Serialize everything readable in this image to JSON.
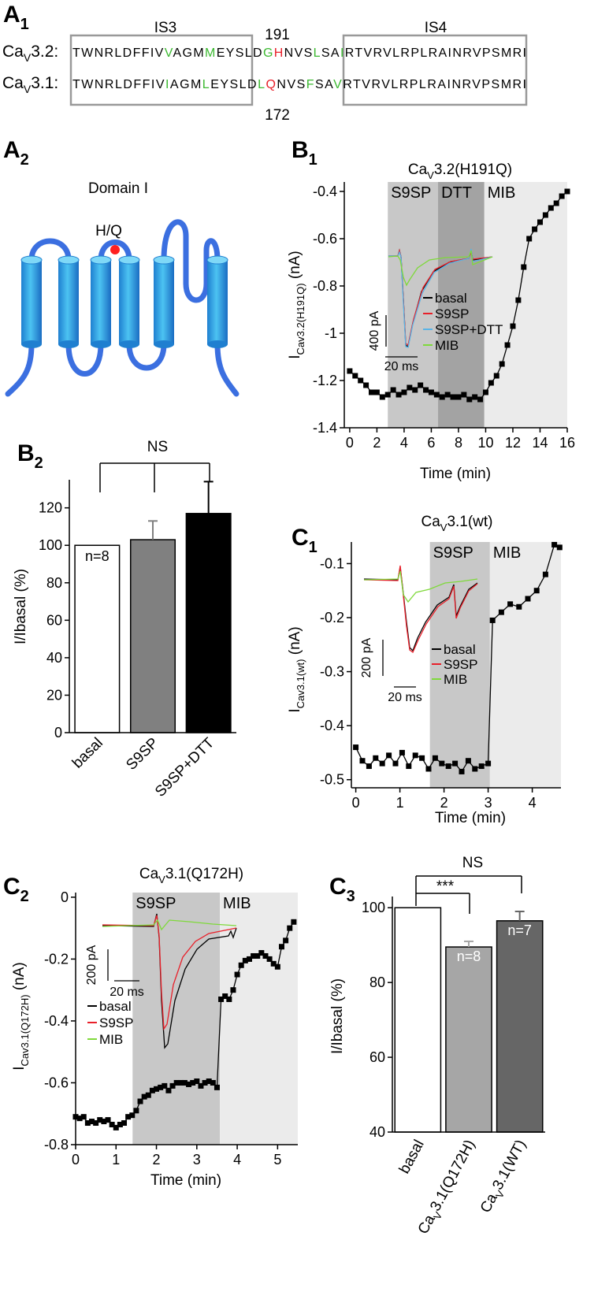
{
  "panel_labels": [
    [
      "A",
      "1"
    ],
    [
      "A",
      "2"
    ],
    [
      "B",
      "1"
    ],
    [
      "B",
      "2"
    ],
    [
      "C",
      "1"
    ],
    [
      "C",
      "2"
    ],
    [
      "C",
      "3"
    ]
  ],
  "sequence": {
    "domains": [
      "IS3",
      "IS4"
    ],
    "positions": [
      "191",
      "172"
    ],
    "rows": [
      {
        "label": [
          "Ca",
          "V",
          "3.2:"
        ],
        "segments": [
          {
            "text": "TWNRLDFFIV",
            "color": "#000000"
          },
          {
            "text": "V",
            "color": "#3cb931"
          },
          {
            "text": "AGM",
            "color": "#000000"
          },
          {
            "text": "M",
            "color": "#3cb931"
          },
          {
            "text": "EYSLD",
            "color": "#000000"
          },
          {
            "text": "G",
            "color": "#3cb931"
          },
          {
            "text": "H",
            "color": "#e8202a"
          },
          {
            "text": "NVS",
            "color": "#000000"
          },
          {
            "text": "L",
            "color": "#3cb931"
          },
          {
            "text": "SA",
            "color": "#000000"
          },
          {
            "text": "I",
            "color": "#3cb931"
          },
          {
            "text": "RTVRVLRPLRAINRVPSMRI",
            "color": "#000000"
          }
        ]
      },
      {
        "label": [
          "Ca",
          "V",
          "3.1:"
        ],
        "segments": [
          {
            "text": "TWNRLDFFIV",
            "color": "#000000"
          },
          {
            "text": "I",
            "color": "#3cb931"
          },
          {
            "text": "AGM",
            "color": "#000000"
          },
          {
            "text": "L",
            "color": "#3cb931"
          },
          {
            "text": "EYSLD",
            "color": "#000000"
          },
          {
            "text": "L",
            "color": "#3cb931"
          },
          {
            "text": "Q",
            "color": "#e8202a"
          },
          {
            "text": "NVS",
            "color": "#000000"
          },
          {
            "text": "F",
            "color": "#3cb931"
          },
          {
            "text": "SA",
            "color": "#000000"
          },
          {
            "text": "V",
            "color": "#3cb931"
          },
          {
            "text": "RTVRVLRPLRAINRVPSMRI",
            "color": "#000000"
          }
        ]
      }
    ]
  },
  "diagram": {
    "title": "Domain I",
    "site": "H/Q"
  },
  "chart_data": [
    {
      "type": "line",
      "title": [
        "Ca",
        "V",
        "3.2(H191Q)"
      ],
      "xlabel": "Time (min)",
      "ylabel": [
        "I",
        "Cav3.2(H191Q)",
        " (nA)"
      ],
      "x": [
        0,
        0.4,
        0.8,
        1.2,
        1.6,
        2,
        2.4,
        2.8,
        3.2,
        3.6,
        4,
        4.4,
        4.8,
        5.2,
        5.6,
        6,
        6.4,
        6.8,
        7.2,
        7.6,
        8,
        8.4,
        8.8,
        9.2,
        9.6,
        10,
        10.4,
        10.8,
        11.2,
        11.6,
        12,
        12.4,
        12.8,
        13.2,
        13.6,
        14,
        14.4,
        14.8,
        15.2,
        15.6,
        16
      ],
      "values": [
        -1.16,
        -1.18,
        -1.2,
        -1.22,
        -1.25,
        -1.25,
        -1.27,
        -1.26,
        -1.24,
        -1.26,
        -1.25,
        -1.23,
        -1.24,
        -1.22,
        -1.24,
        -1.25,
        -1.26,
        -1.27,
        -1.26,
        -1.27,
        -1.27,
        -1.26,
        -1.28,
        -1.27,
        -1.28,
        -1.25,
        -1.21,
        -1.18,
        -1.13,
        -1.05,
        -0.97,
        -0.86,
        -0.72,
        -0.6,
        -0.56,
        -0.53,
        -0.5,
        -0.47,
        -0.45,
        -0.42,
        -0.4
      ],
      "color": "#000000",
      "marker": "square",
      "xlim": [
        -0.4,
        16
      ],
      "xticks": [
        0,
        2,
        4,
        6,
        8,
        10,
        12,
        14,
        16
      ],
      "ylim": [
        -1.4,
        -0.36
      ],
      "yticks": [
        -1.4,
        -1.2,
        -1,
        -0.8,
        -0.6,
        -0.4
      ],
      "regions": [
        {
          "label": "S9SP",
          "start": 2.8,
          "end": 9.9,
          "color": "#c8c8c8"
        },
        {
          "label": "DTT",
          "start": 6.5,
          "end": 9.9,
          "color": "#a3a3a3"
        },
        {
          "label": "MIB",
          "start": 9.9,
          "end": 16,
          "color": "#ebebeb"
        }
      ],
      "inset": {
        "legend": [
          {
            "name": "basal",
            "color": "#000000"
          },
          {
            "name": "S9SP",
            "color": "#e8202a"
          },
          {
            "name": "S9SP+DTT",
            "color": "#5ab4e6"
          },
          {
            "name": "MIB",
            "color": "#7fd93b"
          }
        ],
        "scale_y": "400 pA",
        "scale_x": "20 ms"
      }
    },
    {
      "type": "bar",
      "ylabel": "I/Ibasal (%)",
      "categories": [
        [
          "basal"
        ],
        [
          "S9SP"
        ],
        [
          "S9SP+DTT"
        ]
      ],
      "values": [
        100,
        103,
        117
      ],
      "errors": [
        null,
        10,
        17
      ],
      "colors": [
        "#ffffff",
        "#808080",
        "#000000"
      ],
      "sample_sizes": [
        "n=8",
        null,
        null
      ],
      "comparisons": [
        {
          "label": "NS"
        }
      ],
      "ylim": [
        0,
        135
      ],
      "yticks": [
        0,
        20,
        40,
        60,
        80,
        100,
        120
      ]
    },
    {
      "type": "line",
      "title": [
        "Ca",
        "V",
        "3.1(wt)"
      ],
      "xlabel": "Time (min)",
      "ylabel": [
        "I",
        "Cav3.1(wt)",
        " (nA)"
      ],
      "x": [
        0,
        0.15,
        0.3,
        0.45,
        0.6,
        0.75,
        0.9,
        1.05,
        1.2,
        1.35,
        1.5,
        1.65,
        1.8,
        1.95,
        2.1,
        2.25,
        2.4,
        2.55,
        2.7,
        2.85,
        3.0,
        3.1,
        3.3,
        3.5,
        3.7,
        3.9,
        4.1,
        4.3,
        4.5,
        4.62
      ],
      "values": [
        -0.44,
        -0.465,
        -0.475,
        -0.46,
        -0.47,
        -0.455,
        -0.47,
        -0.45,
        -0.475,
        -0.455,
        -0.46,
        -0.48,
        -0.46,
        -0.47,
        -0.475,
        -0.47,
        -0.485,
        -0.465,
        -0.48,
        -0.475,
        -0.47,
        -0.205,
        -0.19,
        -0.175,
        -0.18,
        -0.165,
        -0.15,
        -0.12,
        -0.065,
        -0.07
      ],
      "color": "#000000",
      "marker": "square",
      "xlim": [
        -0.1,
        4.65
      ],
      "xticks": [
        0,
        1,
        2,
        3,
        4
      ],
      "ylim": [
        -0.515,
        -0.06
      ],
      "yticks": [
        -0.5,
        -0.4,
        -0.3,
        -0.2,
        -0.1
      ],
      "regions": [
        {
          "label": "S9SP",
          "start": 1.68,
          "end": 3.04,
          "color": "#c8c8c8"
        },
        {
          "label": "MIB",
          "start": 3.04,
          "end": 4.65,
          "color": "#ebebeb"
        }
      ],
      "inset": {
        "legend": [
          {
            "name": "basal",
            "color": "#000000"
          },
          {
            "name": "S9SP",
            "color": "#e8202a"
          },
          {
            "name": "MIB",
            "color": "#7fd93b"
          }
        ],
        "scale_y": "200 pA",
        "scale_x": "20 ms"
      }
    },
    {
      "type": "line",
      "title": [
        "Ca",
        "V",
        "3.1(Q172H)"
      ],
      "xlabel": "Time (min)",
      "ylabel": [
        "I",
        "Cav3.1(Q172H)",
        " (nA)"
      ],
      "x": [
        0,
        0.1,
        0.2,
        0.3,
        0.4,
        0.5,
        0.6,
        0.7,
        0.8,
        0.9,
        1.0,
        1.1,
        1.2,
        1.3,
        1.4,
        1.5,
        1.6,
        1.7,
        1.8,
        1.9,
        2.0,
        2.1,
        2.2,
        2.3,
        2.4,
        2.5,
        2.6,
        2.7,
        2.8,
        2.9,
        3.0,
        3.1,
        3.2,
        3.3,
        3.4,
        3.5,
        3.6,
        3.7,
        3.8,
        3.9,
        4.0,
        4.1,
        4.2,
        4.3,
        4.4,
        4.5,
        4.6,
        4.7,
        4.8,
        4.9,
        5.0,
        5.1,
        5.2,
        5.3,
        5.4
      ],
      "values": [
        -0.71,
        -0.715,
        -0.71,
        -0.73,
        -0.725,
        -0.73,
        -0.72,
        -0.725,
        -0.72,
        -0.735,
        -0.745,
        -0.735,
        -0.73,
        -0.71,
        -0.705,
        -0.69,
        -0.66,
        -0.645,
        -0.64,
        -0.625,
        -0.62,
        -0.615,
        -0.61,
        -0.625,
        -0.61,
        -0.6,
        -0.6,
        -0.6,
        -0.605,
        -0.6,
        -0.595,
        -0.61,
        -0.6,
        -0.595,
        -0.6,
        -0.615,
        -0.33,
        -0.32,
        -0.33,
        -0.3,
        -0.25,
        -0.22,
        -0.205,
        -0.2,
        -0.19,
        -0.19,
        -0.18,
        -0.19,
        -0.2,
        -0.215,
        -0.225,
        -0.16,
        -0.14,
        -0.1,
        -0.08
      ],
      "color": "#000000",
      "marker": "square",
      "xlim": [
        0,
        5.5
      ],
      "xticks": [
        0,
        1,
        2,
        3,
        4,
        5
      ],
      "ylim": [
        -0.8,
        0.015
      ],
      "yticks": [
        -0.8,
        -0.6,
        -0.4,
        -0.2,
        0
      ],
      "regions": [
        {
          "label": "S9SP",
          "start": 1.41,
          "end": 3.57,
          "color": "#c8c8c8"
        },
        {
          "label": "MIB",
          "start": 3.57,
          "end": 5.5,
          "color": "#ebebeb"
        }
      ],
      "inset": {
        "legend": [
          {
            "name": "basal",
            "color": "#000000"
          },
          {
            "name": "S9SP",
            "color": "#e8202a"
          },
          {
            "name": "MIB",
            "color": "#7fd93b"
          }
        ],
        "scale_y": "200 pA",
        "scale_x": "20 ms"
      }
    },
    {
      "type": "bar",
      "ylabel": "I/Ibasal (%)",
      "categories": [
        [
          "basal"
        ],
        [
          "Ca",
          "V",
          "3.1(Q172H)"
        ],
        [
          "Ca",
          "V",
          "3.1(WT)"
        ]
      ],
      "values": [
        100,
        89.5,
        96.5
      ],
      "errors": [
        null,
        1.5,
        2.5
      ],
      "colors": [
        "#ffffff",
        "#a6a6a6",
        "#666666"
      ],
      "sample_sizes": [
        null,
        "n=8",
        "n=7"
      ],
      "comparisons": [
        {
          "label": "***"
        },
        {
          "label": "NS"
        }
      ],
      "ylim": [
        40,
        103
      ],
      "yticks": [
        40,
        60,
        80,
        100
      ]
    }
  ]
}
